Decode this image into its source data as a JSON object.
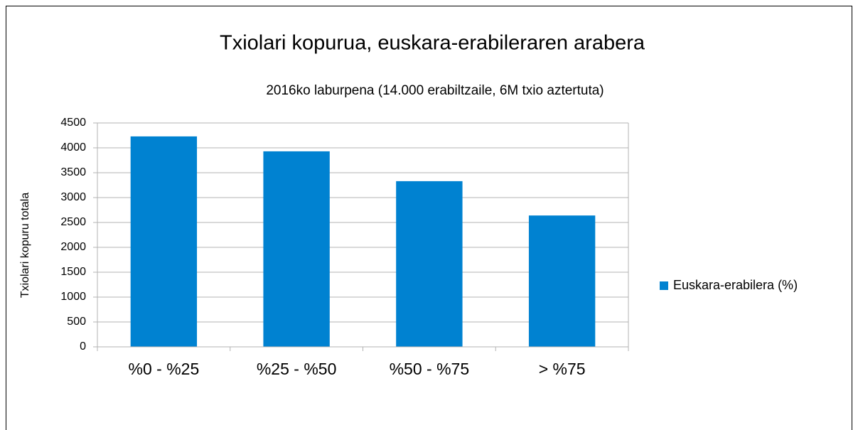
{
  "chart_data": {
    "type": "bar",
    "title": "Txiolari kopurua, euskara-erabileraren arabera",
    "subtitle": "2016ko laburpena (14.000 erabiltzaile, 6M txio aztertuta)",
    "y_label": "Txiolari kopuru totala",
    "categories": [
      "%0 - %25",
      "%25 - %50",
      "%50 - %75",
      "> %75"
    ],
    "series": [
      {
        "name": "Euskara-erabilera (%)",
        "color": "#0082d1",
        "values": [
          4230,
          3930,
          3330,
          2640
        ]
      }
    ],
    "ylim": [
      0,
      4500
    ],
    "yticks": [
      0,
      500,
      1000,
      1500,
      2000,
      2500,
      3000,
      3500,
      4000,
      4500
    ],
    "grid": true,
    "legend": "right"
  }
}
